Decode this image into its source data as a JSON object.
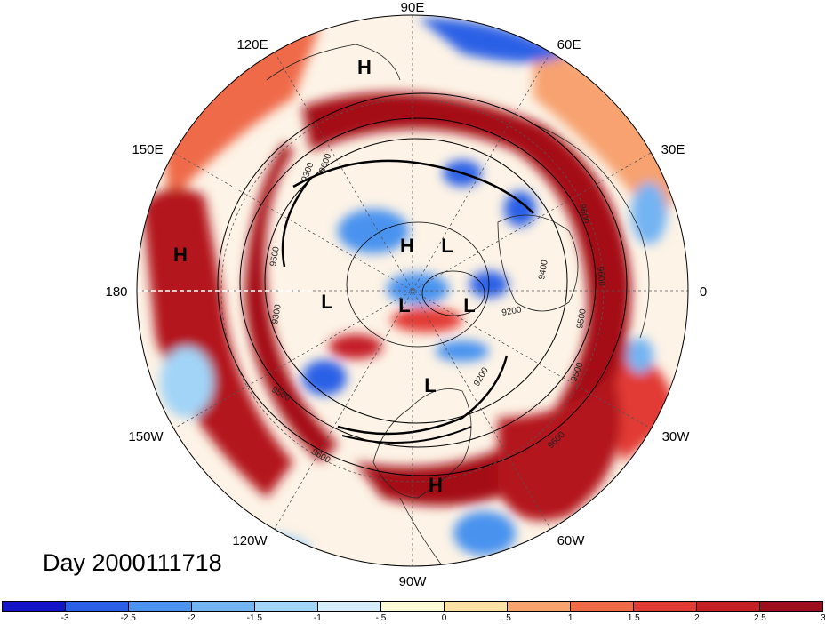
{
  "map": {
    "projection": "polar-stereographic-north",
    "longitude_labels": [
      "90E",
      "60E",
      "30E",
      "0",
      "30W",
      "60W",
      "90W",
      "120W",
      "150W",
      "180",
      "150E",
      "120E"
    ],
    "pressure_systems": [
      {
        "type": "H",
        "region": "siberia"
      },
      {
        "type": "H",
        "region": "north-pacific"
      },
      {
        "type": "H",
        "region": "arctic"
      },
      {
        "type": "L",
        "region": "arctic"
      },
      {
        "type": "L",
        "region": "bering"
      },
      {
        "type": "L",
        "region": "arctic-canada"
      },
      {
        "type": "L",
        "region": "greenland"
      },
      {
        "type": "L",
        "region": "hudson-bay"
      },
      {
        "type": "H",
        "region": "caribbean"
      }
    ],
    "contour_labels": [
      "9300",
      "9600",
      "9600",
      "9600",
      "9500",
      "9400",
      "9200",
      "9500",
      "9600",
      "9500",
      "9500",
      "9600",
      "9300",
      "9200"
    ],
    "colors": {
      "dark_red": "#a50f15",
      "red": "#d7301f",
      "light_red": "#fc9272",
      "pale": "#fee0d2",
      "light_blue": "#c6dbef",
      "blue": "#4292c6",
      "dark_blue": "#1c1ccd"
    }
  },
  "day_label": "Day 2000111718",
  "colorbar": {
    "colors": [
      "#1515c8",
      "#2a60e6",
      "#4a93ef",
      "#73b4f3",
      "#a2d4f7",
      "#d5eefa",
      "#fdfad8",
      "#fde2a4",
      "#f7a26f",
      "#ef6b48",
      "#e23b34",
      "#c51f26",
      "#9e0f1d"
    ],
    "tick_labels": [
      "-3",
      "-2.5",
      "-2",
      "-1.5",
      "-1",
      "-.5",
      "0",
      ".5",
      "1",
      "1.5",
      "2",
      "2.5",
      "3"
    ]
  }
}
